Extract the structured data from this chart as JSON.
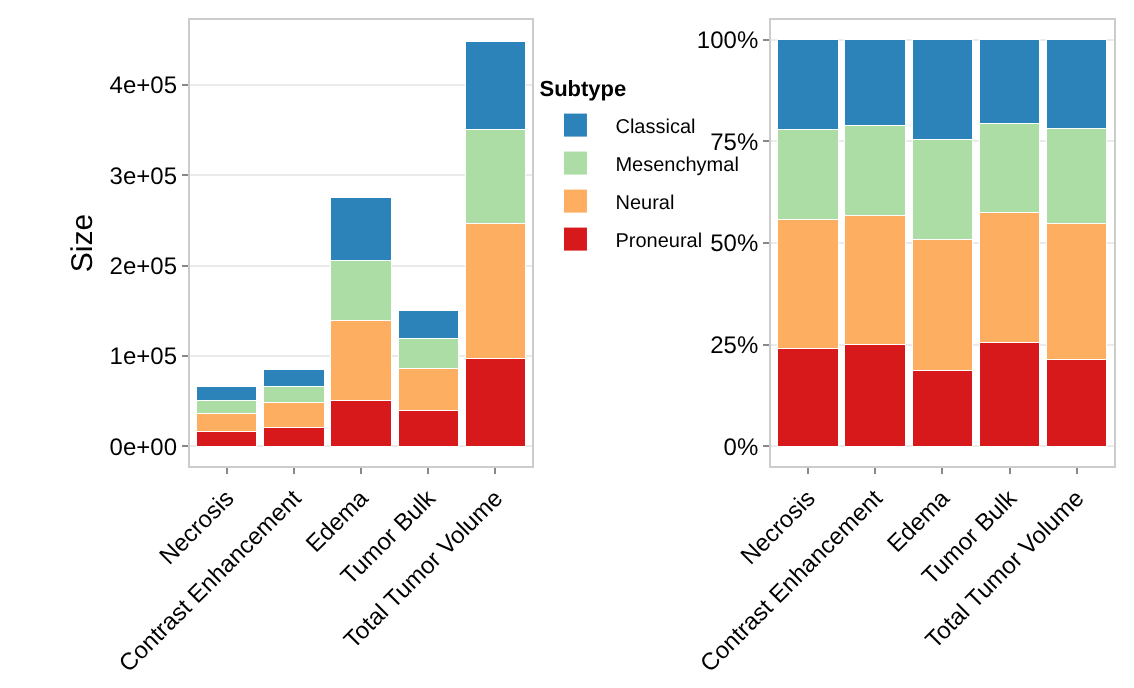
{
  "chart_data": [
    {
      "type": "bar",
      "stacked": true,
      "ylabel": "Size",
      "legend_title": "Subtype",
      "legend": "right",
      "grid": "y",
      "categories": [
        "Necrosis",
        "Contrast Enhancement",
        "Edema",
        "Tumor Bulk",
        "Total Tumor Volume"
      ],
      "series": [
        {
          "name": "Proneural",
          "color": "#d7191c",
          "values": [
            16000,
            21000,
            51000,
            39000,
            97000
          ]
        },
        {
          "name": "Neural",
          "color": "#fdae61",
          "values": [
            20000,
            27000,
            88000,
            47000,
            150000
          ]
        },
        {
          "name": "Mesenchymal",
          "color": "#abdda4",
          "values": [
            15000,
            18000,
            67000,
            33000,
            104000
          ]
        },
        {
          "name": "Classical",
          "color": "#2b83ba",
          "values": [
            15000,
            19000,
            69000,
            31000,
            97000
          ]
        }
      ],
      "ylim": [
        -22500,
        472500
      ],
      "yticks": [
        {
          "value": 0,
          "label": "0e+00"
        },
        {
          "value": 100000,
          "label": "1e+05"
        },
        {
          "value": 200000,
          "label": "2e+05"
        },
        {
          "value": 300000,
          "label": "3e+05"
        },
        {
          "value": 400000,
          "label": "4e+05"
        }
      ]
    },
    {
      "type": "bar",
      "stacked": true,
      "grid": "y",
      "categories": [
        "Necrosis",
        "Contrast Enhancement",
        "Edema",
        "Tumor Bulk",
        "Total Tumor Volume"
      ],
      "series": [
        {
          "color": "#d7191c",
          "values": [
            24,
            25,
            18.5,
            25.4,
            21.4
          ]
        },
        {
          "color": "#fdae61",
          "values": [
            31.7,
            31.7,
            32.4,
            32,
            33.5
          ]
        },
        {
          "color": "#abdda4",
          "values": [
            22.3,
            22.2,
            24.5,
            22.1,
            23.4
          ]
        },
        {
          "color": "#2b83ba",
          "values": [
            22,
            21.1,
            24.6,
            20.5,
            21.7
          ]
        }
      ],
      "ylim": [
        -5,
        105
      ],
      "yticks": [
        {
          "value": 0,
          "label": "0%"
        },
        {
          "value": 25,
          "label": "25%"
        },
        {
          "value": 50,
          "label": "50%"
        },
        {
          "value": 75,
          "label": "75%"
        },
        {
          "value": 100,
          "label": "100%"
        }
      ]
    }
  ]
}
